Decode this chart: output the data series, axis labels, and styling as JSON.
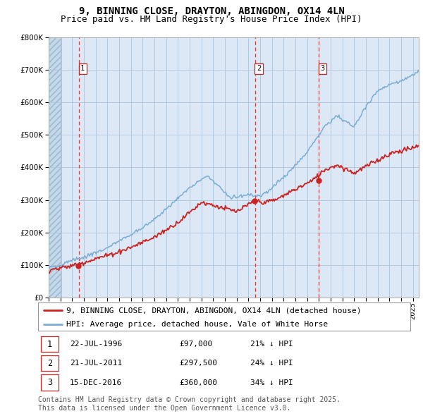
{
  "title_line1": "9, BINNING CLOSE, DRAYTON, ABINGDON, OX14 4LN",
  "title_line2": "Price paid vs. HM Land Registry's House Price Index (HPI)",
  "ylim": [
    0,
    800000
  ],
  "yticks": [
    0,
    100000,
    200000,
    300000,
    400000,
    500000,
    600000,
    700000,
    800000
  ],
  "ytick_labels": [
    "£0",
    "£100K",
    "£200K",
    "£300K",
    "£400K",
    "£500K",
    "£600K",
    "£700K",
    "£800K"
  ],
  "x_start_year": 1994,
  "x_end_year": 2025,
  "hpi_color": "#7aadd4",
  "price_color": "#cc2222",
  "plot_bg_color": "#dce8f5",
  "grid_color": "#adc4da",
  "sale_times": [
    1996.56,
    2011.55,
    2016.96
  ],
  "sale_prices": [
    97000,
    297500,
    360000
  ],
  "sale_labels": [
    "1",
    "2",
    "3"
  ],
  "legend_label_red": "9, BINNING CLOSE, DRAYTON, ABINGDON, OX14 4LN (detached house)",
  "legend_label_blue": "HPI: Average price, detached house, Vale of White Horse",
  "table_rows": [
    {
      "num": "1",
      "date": "22-JUL-1996",
      "price": "£97,000",
      "hpi": "21% ↓ HPI"
    },
    {
      "num": "2",
      "date": "21-JUL-2011",
      "price": "£297,500",
      "hpi": "24% ↓ HPI"
    },
    {
      "num": "3",
      "date": "15-DEC-2016",
      "price": "£360,000",
      "hpi": "34% ↓ HPI"
    }
  ],
  "footnote": "Contains HM Land Registry data © Crown copyright and database right 2025.\nThis data is licensed under the Open Government Licence v3.0.",
  "title_fontsize": 10,
  "subtitle_fontsize": 9,
  "tick_fontsize": 7.5,
  "legend_fontsize": 8,
  "table_fontsize": 8,
  "footnote_fontsize": 7
}
